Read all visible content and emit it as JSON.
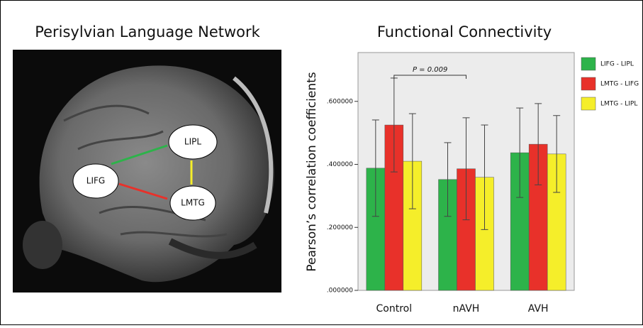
{
  "left_panel": {
    "title": "Perisylvian Language Network",
    "nodes": [
      "LIPL",
      "LIFG",
      "LMTG"
    ]
  },
  "chart_data": {
    "type": "bar",
    "title": "Functional Connectivity",
    "y_label": "Pearson’s correlation coefficients",
    "categories": [
      "Control",
      "nAVH",
      "AVH"
    ],
    "series": [
      {
        "name": "LIFG - LIPL",
        "color": "#2db34a",
        "values": [
          0.388,
          0.352,
          0.437
        ],
        "errors": [
          0.153,
          0.117,
          0.142
        ]
      },
      {
        "name": "LMTG - LIFG",
        "color": "#e8312a",
        "values": [
          0.525,
          0.386,
          0.464
        ],
        "errors": [
          0.149,
          0.162,
          0.129
        ]
      },
      {
        "name": "LMTG - LIPL",
        "color": "#f5ee2a",
        "values": [
          0.41,
          0.359,
          0.433
        ],
        "errors": [
          0.151,
          0.166,
          0.122
        ]
      }
    ],
    "ylim": [
      0,
      0.755
    ],
    "yticks": [
      {
        "value": 0,
        "label": ".000000"
      },
      {
        "value": 0.2,
        "label": ".200000"
      },
      {
        "value": 0.4,
        "label": ".400000"
      },
      {
        "value": 0.6,
        "label": ".600000"
      }
    ],
    "annotation": "P = 0.009",
    "legend_position": "right"
  }
}
